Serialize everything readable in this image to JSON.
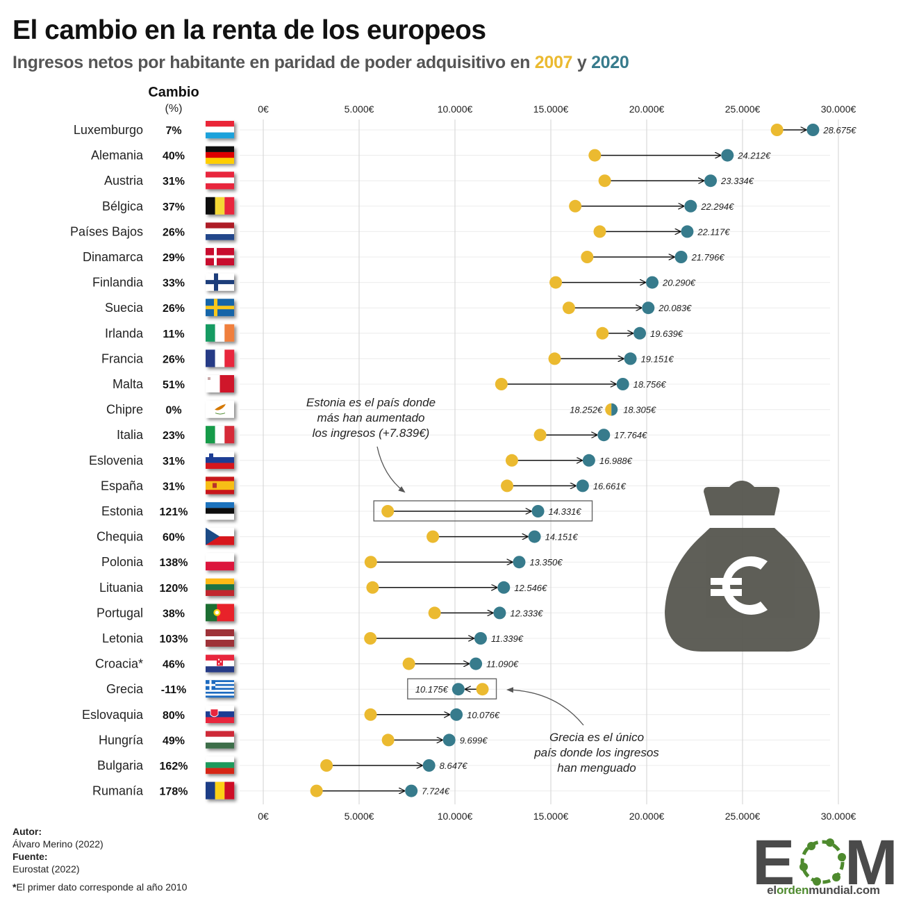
{
  "header": {
    "title": "El cambio en la renta de los europeos",
    "subtitle_prefix": "Ingresos netos por habitante en paridad de poder adquisitivo en ",
    "subtitle_year1": "2007",
    "subtitle_join": " y ",
    "subtitle_year2": "2020"
  },
  "columns": {
    "change_header": "Cambio",
    "change_unit": "(%)"
  },
  "colors": {
    "year_2007": "#EBBA30",
    "year_2020": "#377B8C",
    "icon_gray": "#56564F",
    "logo_green": "#4E8A2E",
    "logo_dark": "#4a4a4a"
  },
  "chart_data": {
    "type": "dumbbell",
    "title": "El cambio en la renta de los europeos",
    "subtitle": "Ingresos netos por habitante en paridad de poder adquisitivo en 2007 y 2020",
    "xlabel": "",
    "ylabel": "",
    "xlim": [
      0,
      30000
    ],
    "x_ticks": [
      0,
      5000,
      10000,
      15000,
      20000,
      25000,
      30000
    ],
    "x_tick_labels": [
      "0€",
      "5.000€",
      "10.000€",
      "15.000€",
      "20.000€",
      "25.000€",
      "30.000€"
    ],
    "grid": true,
    "legend": "subtitle",
    "series_names": [
      "2007",
      "2020"
    ],
    "categories": [
      "Luxemburgo",
      "Alemania",
      "Austria",
      "Bélgica",
      "Países Bajos",
      "Dinamarca",
      "Finlandia",
      "Suecia",
      "Irlanda",
      "Francia",
      "Malta",
      "Chipre",
      "Italia",
      "Eslovenia",
      "España",
      "Estonia",
      "Chequia",
      "Polonia",
      "Lituania",
      "Portugal",
      "Letonia",
      "Croacia*",
      "Grecia",
      "Eslovaquia",
      "Hungría",
      "Bulgaria",
      "Rumanía"
    ],
    "rows": [
      {
        "country": "Luxemburgo",
        "flag": "LU",
        "change": "7%",
        "v2007": 26799,
        "v2020": 28675,
        "label2020": "28.675€"
      },
      {
        "country": "Alemania",
        "flag": "DE",
        "change": "40%",
        "v2007": 17294,
        "v2020": 24212,
        "label2020": "24.212€"
      },
      {
        "country": "Austria",
        "flag": "AT",
        "change": "31%",
        "v2007": 17812,
        "v2020": 23334,
        "label2020": "23.334€"
      },
      {
        "country": "Bélgica",
        "flag": "BE",
        "change": "37%",
        "v2007": 16273,
        "v2020": 22294,
        "label2020": "22.294€"
      },
      {
        "country": "Países Bajos",
        "flag": "NL",
        "change": "26%",
        "v2007": 17553,
        "v2020": 22117,
        "label2020": "22.117€"
      },
      {
        "country": "Dinamarca",
        "flag": "DK",
        "change": "29%",
        "v2007": 16896,
        "v2020": 21796,
        "label2020": "21.796€"
      },
      {
        "country": "Finlandia",
        "flag": "FI",
        "change": "33%",
        "v2007": 15256,
        "v2020": 20290,
        "label2020": "20.290€"
      },
      {
        "country": "Suecia",
        "flag": "SE",
        "change": "26%",
        "v2007": 15939,
        "v2020": 20083,
        "label2020": "20.083€"
      },
      {
        "country": "Irlanda",
        "flag": "IE",
        "change": "11%",
        "v2007": 17693,
        "v2020": 19639,
        "label2020": "19.639€"
      },
      {
        "country": "Francia",
        "flag": "FR",
        "change": "26%",
        "v2007": 15199,
        "v2020": 19151,
        "label2020": "19.151€"
      },
      {
        "country": "Malta",
        "flag": "MT",
        "change": "51%",
        "v2007": 12421,
        "v2020": 18756,
        "label2020": "18.756€"
      },
      {
        "country": "Chipre",
        "flag": "CY",
        "change": "0%",
        "v2007": 18252,
        "v2020": 18305,
        "label2007": "18.252€",
        "label2020": "18.305€"
      },
      {
        "country": "Italia",
        "flag": "IT",
        "change": "23%",
        "v2007": 14442,
        "v2020": 17764,
        "label2020": "17.764€"
      },
      {
        "country": "Eslovenia",
        "flag": "SI",
        "change": "31%",
        "v2007": 12968,
        "v2020": 16988,
        "label2020": "16.988€"
      },
      {
        "country": "España",
        "flag": "ES",
        "change": "31%",
        "v2007": 12718,
        "v2020": 16661,
        "label2020": "16.661€"
      },
      {
        "country": "Estonia",
        "flag": "EE",
        "change": "121%",
        "v2007": 6492,
        "v2020": 14331,
        "label2020": "14.331€",
        "highlight": true
      },
      {
        "country": "Chequia",
        "flag": "CZ",
        "change": "60%",
        "v2007": 8844,
        "v2020": 14151,
        "label2020": "14.151€"
      },
      {
        "country": "Polonia",
        "flag": "PL",
        "change": "138%",
        "v2007": 5609,
        "v2020": 13350,
        "label2020": "13.350€"
      },
      {
        "country": "Lituania",
        "flag": "LT",
        "change": "120%",
        "v2007": 5703,
        "v2020": 12546,
        "label2020": "12.546€"
      },
      {
        "country": "Portugal",
        "flag": "PT",
        "change": "38%",
        "v2007": 8937,
        "v2020": 12333,
        "label2020": "12.333€"
      },
      {
        "country": "Letonia",
        "flag": "LV",
        "change": "103%",
        "v2007": 5586,
        "v2020": 11339,
        "label2020": "11.339€"
      },
      {
        "country": "Croacia*",
        "flag": "HR",
        "change": "46%",
        "v2007": 7596,
        "v2020": 11090,
        "label2020": "11.090€"
      },
      {
        "country": "Grecia",
        "flag": "GR",
        "change": "-11%",
        "v2007": 11433,
        "v2020": 10175,
        "label2020": "10.175€",
        "highlight": true
      },
      {
        "country": "Eslovaquia",
        "flag": "SK",
        "change": "80%",
        "v2007": 5598,
        "v2020": 10076,
        "label2020": "10.076€"
      },
      {
        "country": "Hungría",
        "flag": "HU",
        "change": "49%",
        "v2007": 6509,
        "v2020": 9699,
        "label2020": "9.699€"
      },
      {
        "country": "Bulgaria",
        "flag": "BG",
        "change": "162%",
        "v2007": 3300,
        "v2020": 8647,
        "label2020": "8.647€"
      },
      {
        "country": "Rumanía",
        "flag": "RO",
        "change": "178%",
        "v2007": 2778,
        "v2020": 7724,
        "label2020": "7.724€"
      }
    ],
    "annotations": [
      {
        "target": "Estonia",
        "lines": [
          "Estonia es el país donde",
          "más han aumentado",
          "los ingresos (+7.839€)"
        ]
      },
      {
        "target": "Grecia",
        "lines": [
          "Grecia es el único",
          "país donde los ingresos",
          "han menguado"
        ]
      }
    ]
  },
  "decoration": {
    "icon": "money-bag-euro-icon"
  },
  "footer": {
    "author_label": "Autor:",
    "author": "Álvaro Merino (2022)",
    "source_label": "Fuente:",
    "source": "Eurostat (2022)",
    "note_mark": "*",
    "note": "El primer dato corresponde al año 2010"
  },
  "logo": {
    "letters_left": "E",
    "letters_right": "M",
    "url_part1": "el",
    "url_part2": "orden",
    "url_part3": "mundial.com"
  }
}
